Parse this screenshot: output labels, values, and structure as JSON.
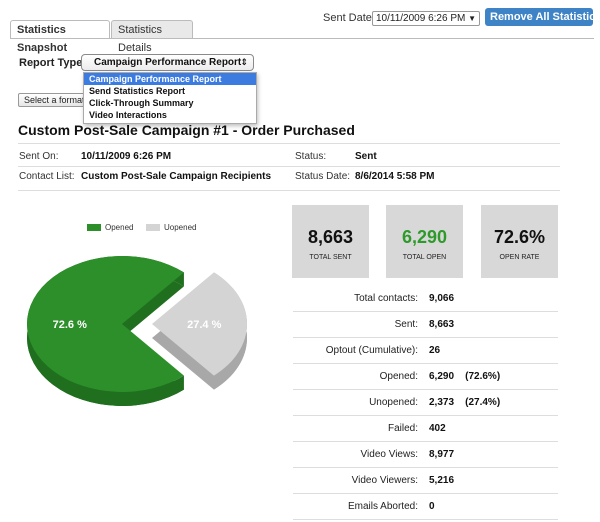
{
  "tabs": [
    {
      "label": "Statistics Snapshot",
      "active": true
    },
    {
      "label": "Statistics Details",
      "active": false
    }
  ],
  "sent_date": {
    "label": "Sent Date:",
    "value": "10/11/2009 6:26 PM"
  },
  "remove_button": "Remove All Statistics",
  "report_type": {
    "label": "Report Type:",
    "selected": "Campaign Performance Report",
    "options": [
      "Campaign Performance Report",
      "Send Statistics Report",
      "Click-Through Summary",
      "Video Interactions"
    ]
  },
  "format_button": "Select a format",
  "campaign": {
    "title": "Custom Post-Sale Campaign #1 - Order Purchased",
    "sent_on_label": "Sent On:",
    "sent_on": "10/11/2009 6:26 PM",
    "contact_list_label": "Contact List:",
    "contact_list": "Custom Post-Sale Campaign Recipients",
    "status_label": "Status:",
    "status": "Sent",
    "status_date_label": "Status Date:",
    "status_date": "8/6/2014 5:58 PM"
  },
  "colors": {
    "opened": "#2c8f2a",
    "unopened": "#d4d4d4",
    "accent_green": "#2f9a2c",
    "button_blue": "#3d83c6"
  },
  "chart_data": {
    "type": "pie",
    "legend": [
      "Opened",
      "Uopened"
    ],
    "legend_position": "top",
    "slices": [
      {
        "label": "Opened",
        "value": 72.6,
        "text": "72.6 %"
      },
      {
        "label": "Uopened",
        "value": 27.4,
        "text": "27.4 %"
      }
    ]
  },
  "tiles": [
    {
      "value": "8,663",
      "label": "TOTAL SENT",
      "green": false
    },
    {
      "value": "6,290",
      "label": "TOTAL OPEN",
      "green": true
    },
    {
      "value": "72.6%",
      "label": "OPEN RATE",
      "green": false
    }
  ],
  "stats": [
    {
      "label": "Total contacts:",
      "value": "9,066"
    },
    {
      "label": "Sent:",
      "value": "8,663"
    },
    {
      "label": "Optout (Cumulative):",
      "value": "26"
    },
    {
      "label": "Opened:",
      "value": "6,290    (72.6%)"
    },
    {
      "label": "Unopened:",
      "value": "2,373    (27.4%)"
    },
    {
      "label": "Failed:",
      "value": "402"
    },
    {
      "label": "Video Views:",
      "value": "8,977"
    },
    {
      "label": "Video Viewers:",
      "value": "5,216"
    },
    {
      "label": "Emails Aborted:",
      "value": "0"
    }
  ]
}
